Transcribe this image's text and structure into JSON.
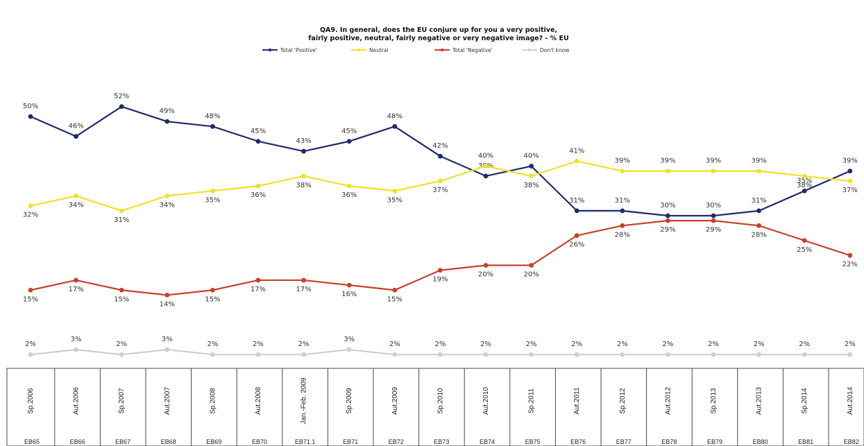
{
  "chart_data": {
    "type": "line",
    "title_lines": [
      "QA9. In general, does the EU conjure up for you a very positive,",
      "fairly positive, neutral, fairly negative or very negative image? - % EU"
    ],
    "x_dates": [
      "Sp.2006",
      "Aut.2006",
      "Sp.2007",
      "Aut.2007",
      "Sp.2008",
      "Aut.2008",
      "Jan.-Feb. 2009",
      "Sp.2009",
      "Aut.2009",
      "Sp.2010",
      "Aut.2010",
      "Sp.2011",
      "Aut.2011",
      "Sp.2012",
      "Aut.2012",
      "Sp.2013",
      "Aut.2013",
      "Sp.2014",
      "Aut.2014"
    ],
    "x_waves": [
      "EB65",
      "EB66",
      "EB67",
      "EB68",
      "EB69",
      "EB70",
      "EB71.1",
      "EB71",
      "EB72",
      "EB73",
      "EB74",
      "EB75",
      "EB76",
      "EB77",
      "EB78",
      "EB79",
      "EB80",
      "EB81",
      "EB82"
    ],
    "legend_position": "top-center",
    "grid": false,
    "series": [
      {
        "name": "Total 'Positive'",
        "color": "#1f2a6b",
        "values": [
          50,
          46,
          52,
          49,
          48,
          45,
          43,
          45,
          48,
          42,
          38,
          40,
          31,
          31,
          30,
          30,
          31,
          35,
          39
        ],
        "labels": [
          "50%",
          "46%",
          "52%",
          "49%",
          "48%",
          "45%",
          "43%",
          "45%",
          "48%",
          "42%",
          "38%",
          "40%",
          "31%",
          "31%",
          "30%",
          "30%",
          "31%",
          "35%",
          "39%"
        ]
      },
      {
        "name": "Neutral",
        "color": "#f2e02c",
        "values": [
          32,
          34,
          31,
          34,
          35,
          36,
          38,
          36,
          35,
          37,
          40,
          38,
          41,
          39,
          39,
          39,
          39,
          38,
          37
        ],
        "labels": [
          "32%",
          "34%",
          "31%",
          "34%",
          "35%",
          "36%",
          "38%",
          "36%",
          "35%",
          "37%",
          "40%",
          "38%",
          "41%",
          "39%",
          "39%",
          "39%",
          "39%",
          "38%",
          "37%"
        ]
      },
      {
        "name": "Total 'Negative'",
        "color": "#c8402a",
        "values": [
          15,
          17,
          15,
          14,
          15,
          17,
          17,
          16,
          15,
          19,
          20,
          20,
          26,
          28,
          29,
          29,
          28,
          25,
          22
        ],
        "labels": [
          "15%",
          "17%",
          "15%",
          "14%",
          "15%",
          "17%",
          "17%",
          "16%",
          "15%",
          "19%",
          "20%",
          "20%",
          "26%",
          "28%",
          "29%",
          "29%",
          "28%",
          "25%",
          "22%"
        ]
      },
      {
        "name": "Don't know",
        "color": "#cfcfcf",
        "values": [
          2,
          3,
          2,
          3,
          2,
          2,
          2,
          3,
          2,
          2,
          2,
          2,
          2,
          2,
          2,
          2,
          2,
          2,
          2
        ],
        "labels": [
          "2%",
          "3%",
          "2%",
          "3%",
          "2%",
          "2%",
          "2%",
          "3%",
          "2%",
          "2%",
          "2%",
          "2%",
          "2%",
          "2%",
          "2%",
          "2%",
          "2%",
          "2%",
          "2%"
        ]
      }
    ]
  }
}
